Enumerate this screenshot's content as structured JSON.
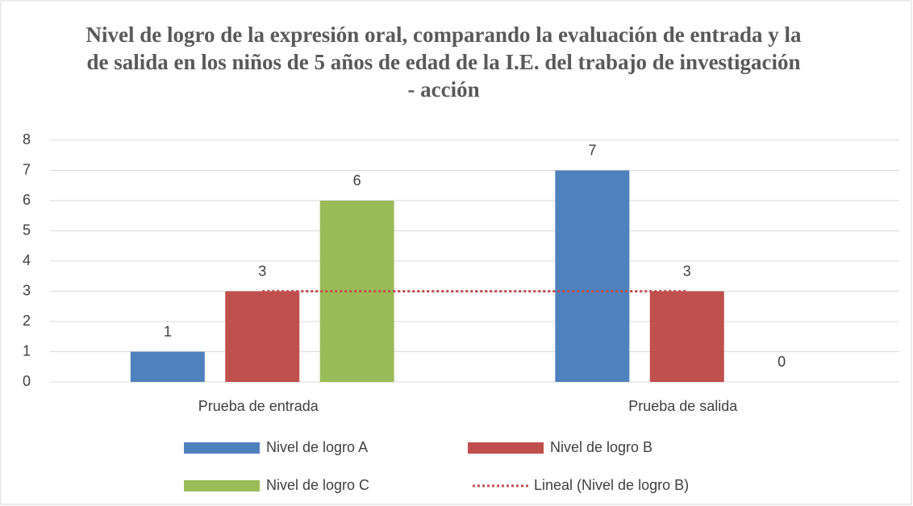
{
  "chart_data": {
    "type": "bar",
    "title": "Nivel de logro de la expresión oral, comparando la evaluación de entrada y la de salida en los niños de 5 años de edad de la I.E. del trabajo de investigación - acción",
    "categories": [
      "Prueba de entrada",
      "Prueba de salida"
    ],
    "series": [
      {
        "name": "Nivel de logro A",
        "color": "#4f81bd",
        "values": [
          1,
          7
        ]
      },
      {
        "name": "Nivel de logro B",
        "color": "#c0504d",
        "values": [
          3,
          3
        ]
      },
      {
        "name": "Nivel de logro C",
        "color": "#9bbb59",
        "values": [
          6,
          0
        ]
      }
    ],
    "trendlines": [
      {
        "name": "Lineal (Nivel de logro B)",
        "color": "#c0504d",
        "values": [
          3,
          3
        ]
      }
    ],
    "ylim": [
      0,
      8
    ],
    "yticks": [
      0,
      1,
      2,
      3,
      4,
      5,
      6,
      7,
      8
    ],
    "grid": true,
    "legend": "bottom"
  }
}
